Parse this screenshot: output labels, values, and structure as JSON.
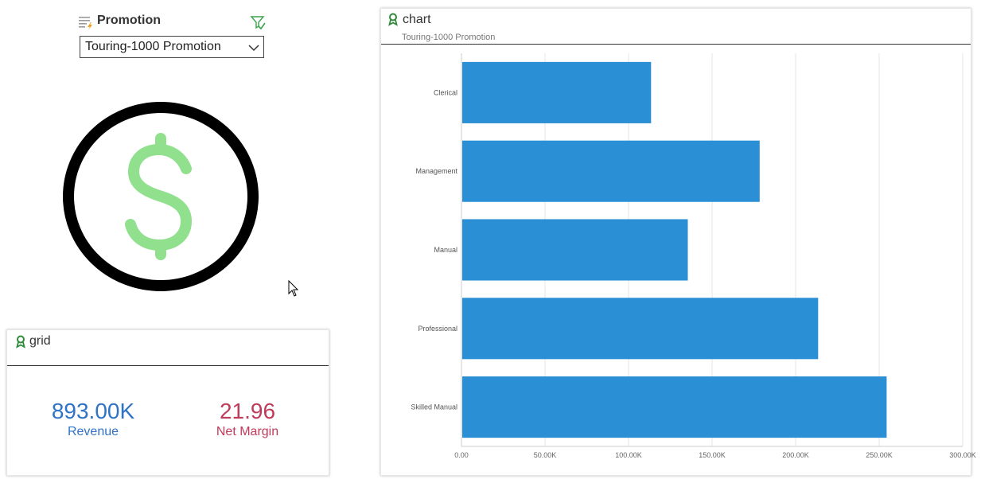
{
  "filter": {
    "title": "Promotion",
    "selected": "Touring-1000 Promotion",
    "icon": "list-lightning-icon",
    "funnel_icon": "filter-check-icon"
  },
  "image": {
    "icon": "dollar-circle-icon"
  },
  "grid": {
    "title": "grid",
    "kpis": [
      {
        "value": "893.00K",
        "label": "Revenue",
        "color": "#2f73c6"
      },
      {
        "value": "21.96",
        "label": "Net Margin",
        "color": "#c03a5a"
      }
    ]
  },
  "chart": {
    "title": "chart",
    "subtitle": "Touring-1000 Promotion"
  },
  "chart_data": {
    "type": "bar",
    "orientation": "horizontal",
    "categories": [
      "Clerical",
      "Management",
      "Manual",
      "Professional",
      "Skilled Manual"
    ],
    "values": [
      113000,
      178000,
      135000,
      213000,
      254000
    ],
    "xlim": [
      0,
      300000
    ],
    "xticks": [
      "0.00",
      "50.00K",
      "100.00K",
      "150.00K",
      "200.00K",
      "250.00K",
      "300.00K"
    ],
    "grid": true,
    "bar_color": "#2a8fd4"
  }
}
